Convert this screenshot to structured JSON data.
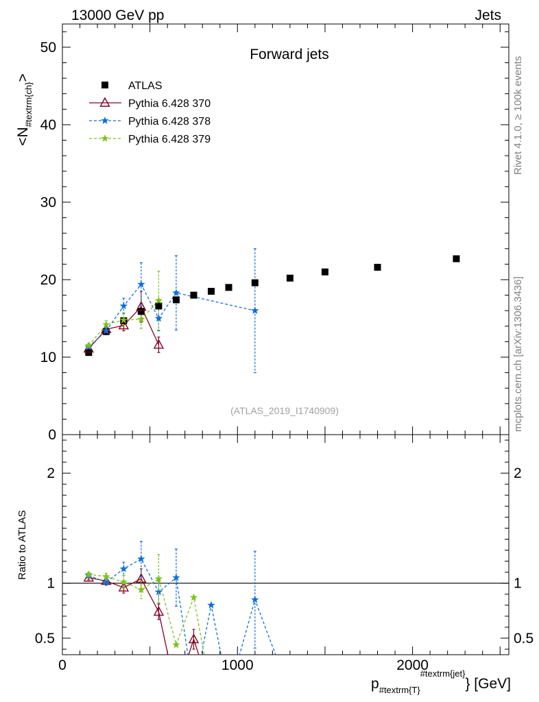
{
  "header": {
    "left": "13000 GeV pp",
    "right": "Jets"
  },
  "side_labels": {
    "top": "Rivet 4.1.0, ≥ 100k events",
    "bottom": "mcplots.cern.ch [arXiv:1306.3436]"
  },
  "chart_data": {
    "type": "scatter",
    "title": "Forward jets",
    "analysis_label": "(ATLAS_2019_I1740909)",
    "ylabel": "<N",
    "ylabel_sub": "#textrm{ch}",
    "ylabel_end": ">",
    "xlabel": "p",
    "xlabel_sub": "#textrm{T}",
    "xlabel_sup": "#textrm{jet}",
    "xlabel_unit": "} [GeV]",
    "xlim": [
      0,
      2550
    ],
    "ylim": [
      0,
      53
    ],
    "x_ticks": [
      "0",
      "1000",
      "2000"
    ],
    "x_tick_values": [
      0,
      1000,
      2000
    ],
    "y_ticks": [
      "0",
      "10",
      "20",
      "30",
      "40",
      "50"
    ],
    "y_tick_values": [
      0,
      10,
      20,
      30,
      40,
      50
    ],
    "data": {
      "name": "ATLAS",
      "color": "#000000",
      "x": [
        150,
        250,
        350,
        450,
        550,
        650,
        750,
        850,
        950,
        1100,
        1300,
        1500,
        1800,
        2250
      ],
      "y": [
        10.6,
        13.3,
        14.7,
        15.9,
        16.6,
        17.4,
        18.0,
        18.5,
        19.0,
        19.6,
        20.2,
        21.0,
        21.6,
        22.7
      ]
    },
    "series": [
      {
        "name": "Pythia 6.428 370",
        "color": "#800020",
        "style": "solid",
        "marker": "triangle",
        "x": [
          150,
          250,
          350,
          450,
          550
        ],
        "y": [
          11.1,
          13.6,
          14.1,
          16.5,
          11.6
        ],
        "err": [
          0.3,
          0.4,
          0.7,
          2.0,
          1.0
        ]
      },
      {
        "name": "Pythia 6.428 378",
        "color": "#0F6FDA",
        "style": "dashed",
        "marker": "star",
        "x": [
          150,
          250,
          350,
          450,
          550,
          650,
          1100
        ],
        "y": [
          11.3,
          13.4,
          16.6,
          19.4,
          15.0,
          18.3,
          16.0
        ],
        "err": [
          0.3,
          0.5,
          1.0,
          2.8,
          1.6,
          4.8,
          8.0
        ]
      },
      {
        "name": "Pythia 6.428 379",
        "color": "#7FC21F",
        "style": "dashed",
        "marker": "star",
        "x": [
          150,
          250,
          350,
          450,
          550
        ],
        "y": [
          11.5,
          14.2,
          14.8,
          14.9,
          17.3
        ],
        "err": [
          0.3,
          0.5,
          0.9,
          1.2,
          3.8
        ]
      }
    ],
    "ratio": {
      "ylabel": "Ratio to ATLAS",
      "ylim": [
        0.35,
        2.35
      ],
      "y_ticks": [
        "0.5",
        "1",
        "2"
      ],
      "y_tick_values": [
        0.5,
        1,
        2
      ],
      "reference": 1,
      "series": [
        {
          "name": "Pythia 6.428 370",
          "x": [
            150,
            250,
            350,
            450,
            550,
            650,
            750,
            850
          ],
          "y": [
            1.05,
            1.02,
            0.96,
            1.04,
            0.74,
            0.0,
            0.49,
            0.0
          ],
          "err": [
            0.02,
            0.03,
            0.05,
            0.09,
            0.07,
            0,
            0.09,
            0
          ]
        },
        {
          "name": "Pythia 6.428 378",
          "x": [
            150,
            250,
            350,
            450,
            550,
            650,
            750,
            850,
            950,
            1100,
            1300
          ],
          "y": [
            1.07,
            1.01,
            1.13,
            1.22,
            0.92,
            1.05,
            0.0,
            0.8,
            0.0,
            0.85,
            0.0
          ],
          "err": [
            0.02,
            0.03,
            0.06,
            0.16,
            0.1,
            0.26,
            0,
            0,
            0,
            0.44,
            0
          ]
        },
        {
          "name": "Pythia 6.428 379",
          "x": [
            150,
            250,
            350,
            450,
            550,
            650,
            750,
            850
          ],
          "y": [
            1.08,
            1.06,
            1.01,
            0.94,
            1.04,
            0.44,
            0.87,
            0.0
          ],
          "err": [
            0.02,
            0.03,
            0.06,
            0.08,
            0.22,
            0,
            0,
            0
          ]
        }
      ]
    },
    "ratio_x_ticks": [
      "0",
      "1000",
      "2000"
    ]
  }
}
